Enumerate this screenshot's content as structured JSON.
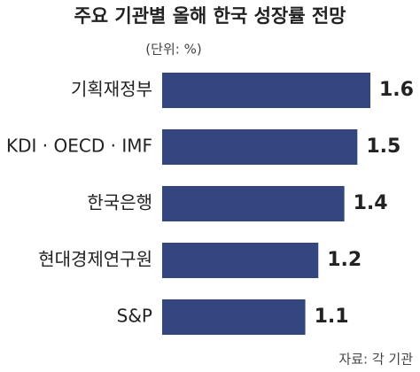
{
  "chart_data": {
    "type": "hbar",
    "title": "주요 기관별 올해 한국 성장률 전망",
    "unit": "(단위: %)",
    "categories": [
      "기획재정부",
      "KDI · OECD · IMF",
      "한국은행",
      "현대경제연구원",
      "S&P"
    ],
    "values": [
      1.6,
      1.5,
      1.4,
      1.2,
      1.1
    ],
    "color": "#33467e",
    "source": "자료: 각 기관"
  }
}
